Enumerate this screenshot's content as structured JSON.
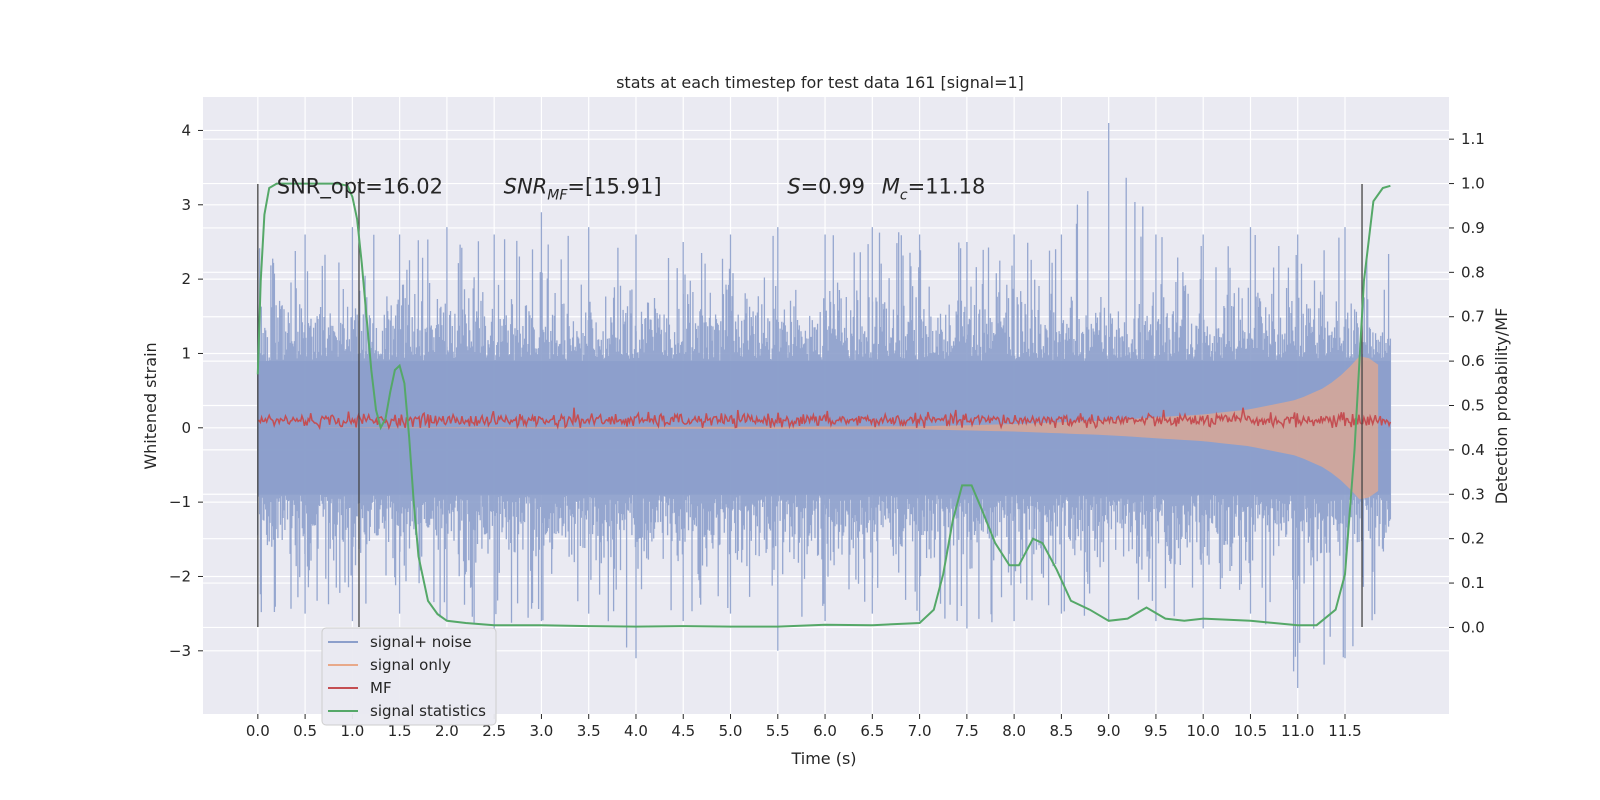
{
  "chart_data": {
    "type": "line",
    "title": "stats at each timestep for test data 161 [signal=1]",
    "xlabel": "Time (s)",
    "ylabel": "Whitened strain",
    "y2label": "Detection probability/MF",
    "xlim": [
      -0.58,
      12.6
    ],
    "ylim": [
      -3.85,
      4.45
    ],
    "y2lim": [
      -0.195,
      1.195
    ],
    "x_ticks": [
      0.0,
      0.5,
      1.0,
      1.5,
      2.0,
      2.5,
      3.0,
      3.5,
      4.0,
      4.5,
      5.0,
      5.5,
      6.0,
      6.5,
      7.0,
      7.5,
      8.0,
      8.5,
      9.0,
      9.5,
      10.0,
      10.5,
      11.0,
      11.5
    ],
    "x_tick_labels": [
      "0.0",
      "0.5",
      "1.0",
      "1.5",
      "2.0",
      "2.5",
      "3.0",
      "3.5",
      "4.0",
      "4.5",
      "5.0",
      "5.5",
      "6.0",
      "6.5",
      "7.0",
      "7.5",
      "8.0",
      "8.5",
      "9.0",
      "9.5",
      "10.0",
      "10.5",
      "11.0",
      "11.5"
    ],
    "y_ticks": [
      -3,
      -2,
      -1,
      0,
      1,
      2,
      3,
      4
    ],
    "y_tick_labels": [
      "−3",
      "−2",
      "−1",
      "0",
      "1",
      "2",
      "3",
      "4"
    ],
    "y2_ticks": [
      0.0,
      0.1,
      0.2,
      0.3,
      0.4,
      0.5,
      0.6,
      0.7,
      0.8,
      0.9,
      1.0,
      1.1
    ],
    "y2_tick_labels": [
      "0.0",
      "0.1",
      "0.2",
      "0.3",
      "0.4",
      "0.5",
      "0.6",
      "0.7",
      "0.8",
      "0.9",
      "1.0",
      "1.1"
    ],
    "grid": true,
    "legend_position": "lower-left",
    "annotations": [
      {
        "text": "SNR_opt=16.02",
        "x": 0.2,
        "y": 3.15
      },
      {
        "text": "SNR",
        "sub": "MF",
        "suffix": "=[15.91]",
        "x": 2.6,
        "y": 3.15
      },
      {
        "text": "S",
        "suffix": "=0.99",
        "x": 5.6,
        "y": 3.15
      },
      {
        "text": "M",
        "sub": "c",
        "suffix": "=11.18",
        "x": 6.6,
        "y": 3.15
      }
    ],
    "vertical_lines": [
      {
        "x": 0.0,
        "y_range": [
          -2.68,
          3.28
        ]
      },
      {
        "x": 1.07,
        "y_range": [
          -2.68,
          3.28
        ]
      },
      {
        "x": 11.68,
        "y_range": [
          -2.68,
          3.28
        ]
      }
    ],
    "series": [
      {
        "name": "signal+ noise",
        "color": "#8c9fcb",
        "t_range": [
          0.0,
          11.98
        ],
        "band_envelope": {
          "x": [
            0,
            0.5,
            1.0,
            1.5,
            2.0,
            2.5,
            3.0,
            3.5,
            4.0,
            4.5,
            5.0,
            5.5,
            6.0,
            6.5,
            7.0,
            7.5,
            8.0,
            8.5,
            9.0,
            9.5,
            10.0,
            10.5,
            11.0,
            11.5,
            11.98
          ],
          "upper": [
            2.5,
            2.6,
            2.7,
            2.6,
            2.7,
            2.6,
            2.9,
            2.7,
            2.6,
            2.5,
            2.6,
            2.7,
            2.6,
            2.7,
            2.6,
            2.5,
            2.6,
            2.6,
            4.1,
            2.6,
            2.6,
            2.7,
            2.6,
            2.7,
            2.5
          ],
          "lower": [
            -2.6,
            -2.5,
            -2.6,
            -2.5,
            -2.6,
            -2.7,
            -2.6,
            -2.5,
            -3.1,
            -2.6,
            -2.5,
            -3.0,
            -2.6,
            -2.5,
            -2.6,
            -2.7,
            -2.6,
            -2.5,
            -2.6,
            -2.6,
            -2.7,
            -2.5,
            -3.5,
            -3.1,
            -2.4
          ]
        }
      },
      {
        "name": "signal only",
        "color": "#e8a98a",
        "amplitude_envelope": {
          "x": [
            0,
            7.0,
            8.0,
            9.0,
            10.0,
            10.5,
            11.0,
            11.3,
            11.5,
            11.68,
            11.85
          ],
          "amp": [
            0.0,
            0.02,
            0.05,
            0.1,
            0.18,
            0.25,
            0.38,
            0.55,
            0.75,
            1.0,
            0.85
          ]
        }
      },
      {
        "name": "MF",
        "color": "#c44e52",
        "t_range": [
          0.0,
          11.98
        ],
        "baseline": 0.1,
        "peaks": [
          {
            "x": 3.35,
            "y": 0.27
          },
          {
            "x": 10.42,
            "y": 0.27
          }
        ]
      },
      {
        "name": "signal statistics",
        "color": "#55a868",
        "axis": "y2",
        "x": [
          0.0,
          0.03,
          0.07,
          0.12,
          0.2,
          0.3,
          0.5,
          0.7,
          0.85,
          0.95,
          1.0,
          1.05,
          1.1,
          1.15,
          1.2,
          1.25,
          1.3,
          1.35,
          1.4,
          1.45,
          1.5,
          1.55,
          1.6,
          1.65,
          1.7,
          1.8,
          1.9,
          2.0,
          2.2,
          2.5,
          3.0,
          3.5,
          4.0,
          4.5,
          5.0,
          5.5,
          6.0,
          6.5,
          7.0,
          7.15,
          7.25,
          7.35,
          7.45,
          7.55,
          7.65,
          7.8,
          7.95,
          8.05,
          8.2,
          8.3,
          8.45,
          8.6,
          8.8,
          9.0,
          9.2,
          9.4,
          9.6,
          9.8,
          10.0,
          10.5,
          11.0,
          11.2,
          11.4,
          11.5,
          11.6,
          11.7,
          11.8,
          11.9,
          11.98
        ],
        "y": [
          0.57,
          0.78,
          0.93,
          0.99,
          1.0,
          1.0,
          1.0,
          1.0,
          1.0,
          0.995,
          0.97,
          0.92,
          0.82,
          0.7,
          0.58,
          0.49,
          0.45,
          0.47,
          0.53,
          0.58,
          0.59,
          0.55,
          0.43,
          0.28,
          0.16,
          0.06,
          0.03,
          0.015,
          0.01,
          0.005,
          0.005,
          0.003,
          0.002,
          0.003,
          0.002,
          0.002,
          0.006,
          0.005,
          0.01,
          0.04,
          0.12,
          0.24,
          0.32,
          0.32,
          0.27,
          0.19,
          0.14,
          0.14,
          0.2,
          0.19,
          0.13,
          0.06,
          0.04,
          0.015,
          0.02,
          0.045,
          0.02,
          0.015,
          0.02,
          0.015,
          0.005,
          0.005,
          0.04,
          0.12,
          0.4,
          0.78,
          0.96,
          0.99,
          0.995
        ]
      }
    ]
  }
}
